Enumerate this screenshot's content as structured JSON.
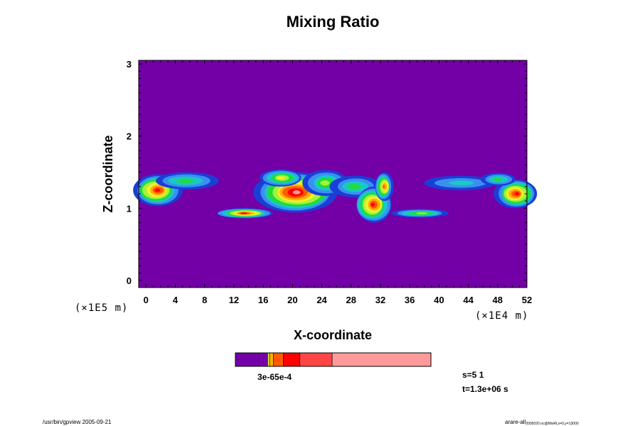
{
  "chart_data": {
    "type": "heatmap",
    "title": "Mixing Ratio",
    "xlabel": "X-coordinate",
    "ylabel": "Z-coordinate",
    "x_unit": "(×1E4 m)",
    "z_unit": "(×1E5 m)",
    "xlim": [
      -1,
      52
    ],
    "ylim": [
      -0.1,
      3.05
    ],
    "x_ticks": [
      0,
      4,
      8,
      12,
      16,
      20,
      24,
      28,
      32,
      36,
      40,
      44,
      48,
      52
    ],
    "y_ticks": [
      0,
      1,
      2,
      3
    ],
    "background_color": "#7300a6",
    "levels": [
      {
        "color": "#1a3fd6",
        "level": 1
      },
      {
        "color": "#3c8ff0",
        "level": 2
      },
      {
        "color": "#19c8c8",
        "level": 3
      },
      {
        "color": "#1fdc3c",
        "level": 4
      },
      {
        "color": "#a6f23a",
        "level": 5
      },
      {
        "color": "#f0f030",
        "level": 6
      },
      {
        "color": "#ffb000",
        "level": 7
      },
      {
        "color": "#ff5a00",
        "level": 8
      },
      {
        "color": "#ff0000",
        "level": 9
      },
      {
        "color": "#ff9a9a",
        "level": 10
      }
    ],
    "features": [
      {
        "cx": 1.5,
        "cz": 1.25,
        "rx": 3.2,
        "rz": 0.22,
        "peak": 9
      },
      {
        "cx": 5.5,
        "cz": 1.38,
        "rx": 4.5,
        "rz": 0.12,
        "peak": 4
      },
      {
        "cx": 13.5,
        "cz": 0.93,
        "rx": 3.8,
        "rz": 0.07,
        "peak": 9
      },
      {
        "cx": 20.5,
        "cz": 1.22,
        "rx": 5.5,
        "rz": 0.28,
        "peak": 10
      },
      {
        "cx": 18.5,
        "cz": 1.42,
        "rx": 3.0,
        "rz": 0.12,
        "peak": 6
      },
      {
        "cx": 24.5,
        "cz": 1.35,
        "rx": 3.0,
        "rz": 0.18,
        "peak": 5
      },
      {
        "cx": 28.5,
        "cz": 1.3,
        "rx": 3.5,
        "rz": 0.15,
        "peak": 4
      },
      {
        "cx": 31.0,
        "cz": 1.05,
        "rx": 2.5,
        "rz": 0.25,
        "peak": 9
      },
      {
        "cx": 32.5,
        "cz": 1.3,
        "rx": 1.2,
        "rz": 0.2,
        "peak": 8
      },
      {
        "cx": 37.5,
        "cz": 0.93,
        "rx": 4.0,
        "rz": 0.06,
        "peak": 5
      },
      {
        "cx": 43.0,
        "cz": 1.35,
        "rx": 5.0,
        "rz": 0.1,
        "peak": 3
      },
      {
        "cx": 50.5,
        "cz": 1.2,
        "rx": 2.8,
        "rz": 0.2,
        "peak": 9
      },
      {
        "cx": 48.0,
        "cz": 1.4,
        "rx": 2.5,
        "rz": 0.09,
        "peak": 4
      }
    ],
    "colorbar": {
      "colors": [
        "#7300a6",
        "#f0f030",
        "#ffb000",
        "#ff5a00",
        "#ff0000",
        "#ff4444",
        "#ff9a9a"
      ],
      "fractions": [
        0.165,
        0.01,
        0.02,
        0.05,
        0.085,
        0.165,
        0.505
      ],
      "label": "3e-65e-4"
    }
  },
  "info": {
    "s": "s=5 1",
    "t": "t=1.3e+06 s"
  },
  "footer": {
    "left": "/usr/bin/gpview 2005-09-21",
    "right_main": "arare-all",
    "right_sub": "2005020.nc@MixRt,x=0,y=13000"
  }
}
